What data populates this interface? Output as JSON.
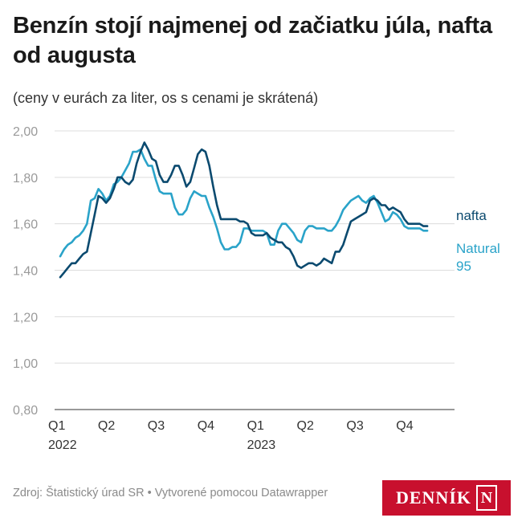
{
  "title": "Benzín stojí najmenej od začiatku júla, nafta od augusta",
  "subtitle": "(ceny v eurách za liter, os s cenami je skrátená)",
  "source": "Zdroj: Štatistický úrad SR • Vytvorené pomocou Datawrapper",
  "logo": {
    "text": "DENNÍK",
    "mark": "N",
    "color": "#c8102e"
  },
  "colors": {
    "nafta": "#0b4a6f",
    "natural95": "#2aa3c9",
    "grid": "#dcdcdc"
  },
  "chart_data": {
    "type": "line",
    "title": "Benzín stojí najmenej od začiatku júla, nafta od augusta",
    "subtitle": "(ceny v eurách za liter, os s cenami je skrátená)",
    "ylim": [
      0.8,
      2.0
    ],
    "yticks": [
      "2,00",
      "1,80",
      "1,60",
      "1,40",
      "1,20",
      "1,00",
      "0,80"
    ],
    "ytick_values": [
      2.0,
      1.8,
      1.6,
      1.4,
      1.2,
      1.0,
      0.8
    ],
    "xticks": [
      {
        "label": "Q1",
        "year": "2022"
      },
      {
        "label": "Q2",
        "year": ""
      },
      {
        "label": "Q3",
        "year": ""
      },
      {
        "label": "Q4",
        "year": ""
      },
      {
        "label": "Q1",
        "year": "2023"
      },
      {
        "label": "Q2",
        "year": ""
      },
      {
        "label": "Q3",
        "year": ""
      },
      {
        "label": "Q4",
        "year": ""
      }
    ],
    "grid": true,
    "x_unit": "weeks from start of 2022",
    "series": [
      {
        "name": "nafta",
        "label": "nafta",
        "x": [
          0,
          1,
          2,
          3,
          4,
          5,
          6,
          7,
          8,
          9,
          10,
          11,
          12,
          13,
          14,
          15,
          16,
          17,
          18,
          19,
          20,
          21,
          22,
          23,
          24,
          25,
          26,
          27,
          28,
          29,
          30,
          31,
          32,
          33,
          34,
          35,
          36,
          37,
          38,
          39,
          40,
          41,
          42,
          43,
          44,
          45,
          46,
          47,
          48,
          49,
          50,
          51,
          52,
          53,
          54,
          55,
          56,
          57,
          58,
          59,
          60,
          61,
          62,
          63,
          64,
          65,
          66,
          67,
          68,
          69,
          70,
          71,
          72,
          73,
          74,
          75,
          76,
          77,
          78,
          79,
          80,
          81,
          82,
          83,
          84,
          85,
          86,
          87,
          88,
          89,
          90,
          91,
          92,
          93,
          94,
          95,
          96
        ],
        "values": [
          1.37,
          1.39,
          1.41,
          1.43,
          1.43,
          1.45,
          1.47,
          1.48,
          1.56,
          1.64,
          1.72,
          1.71,
          1.69,
          1.71,
          1.75,
          1.8,
          1.8,
          1.78,
          1.77,
          1.79,
          1.86,
          1.91,
          1.95,
          1.92,
          1.88,
          1.87,
          1.81,
          1.78,
          1.78,
          1.81,
          1.85,
          1.85,
          1.81,
          1.76,
          1.78,
          1.84,
          1.9,
          1.92,
          1.91,
          1.85,
          1.76,
          1.68,
          1.62,
          1.62,
          1.62,
          1.62,
          1.62,
          1.61,
          1.61,
          1.6,
          1.56,
          1.55,
          1.55,
          1.55,
          1.56,
          1.54,
          1.53,
          1.52,
          1.52,
          1.5,
          1.49,
          1.46,
          1.42,
          1.41,
          1.42,
          1.43,
          1.43,
          1.42,
          1.43,
          1.45,
          1.44,
          1.43,
          1.48,
          1.48,
          1.51,
          1.56,
          1.61,
          1.62,
          1.63,
          1.64,
          1.65,
          1.7,
          1.71,
          1.7,
          1.68,
          1.68,
          1.66,
          1.67,
          1.66,
          1.65,
          1.62,
          1.6,
          1.6,
          1.6,
          1.6,
          1.59,
          1.59
        ]
      },
      {
        "name": "Natural 95",
        "label": [
          "Natural",
          "95"
        ],
        "x": [
          0,
          1,
          2,
          3,
          4,
          5,
          6,
          7,
          8,
          9,
          10,
          11,
          12,
          13,
          14,
          15,
          16,
          17,
          18,
          19,
          20,
          21,
          22,
          23,
          24,
          25,
          26,
          27,
          28,
          29,
          30,
          31,
          32,
          33,
          34,
          35,
          36,
          37,
          38,
          39,
          40,
          41,
          42,
          43,
          44,
          45,
          46,
          47,
          48,
          49,
          50,
          51,
          52,
          53,
          54,
          55,
          56,
          57,
          58,
          59,
          60,
          61,
          62,
          63,
          64,
          65,
          66,
          67,
          68,
          69,
          70,
          71,
          72,
          73,
          74,
          75,
          76,
          77,
          78,
          79,
          80,
          81,
          82,
          83,
          84,
          85,
          86,
          87,
          88,
          89,
          90,
          91,
          92,
          93,
          94,
          95,
          96
        ],
        "values": [
          1.46,
          1.49,
          1.51,
          1.52,
          1.54,
          1.55,
          1.57,
          1.6,
          1.7,
          1.71,
          1.75,
          1.73,
          1.7,
          1.72,
          1.77,
          1.78,
          1.8,
          1.83,
          1.86,
          1.91,
          1.91,
          1.92,
          1.88,
          1.85,
          1.85,
          1.79,
          1.74,
          1.73,
          1.73,
          1.73,
          1.67,
          1.64,
          1.64,
          1.66,
          1.71,
          1.74,
          1.73,
          1.72,
          1.72,
          1.67,
          1.63,
          1.58,
          1.52,
          1.49,
          1.49,
          1.5,
          1.5,
          1.52,
          1.58,
          1.58,
          1.57,
          1.57,
          1.57,
          1.57,
          1.56,
          1.51,
          1.51,
          1.57,
          1.6,
          1.6,
          1.58,
          1.56,
          1.53,
          1.52,
          1.57,
          1.59,
          1.59,
          1.58,
          1.58,
          1.58,
          1.57,
          1.57,
          1.59,
          1.62,
          1.66,
          1.68,
          1.7,
          1.71,
          1.72,
          1.7,
          1.69,
          1.71,
          1.72,
          1.69,
          1.65,
          1.61,
          1.62,
          1.65,
          1.64,
          1.62,
          1.59,
          1.58,
          1.58,
          1.58,
          1.58,
          1.57,
          1.57
        ]
      }
    ]
  }
}
